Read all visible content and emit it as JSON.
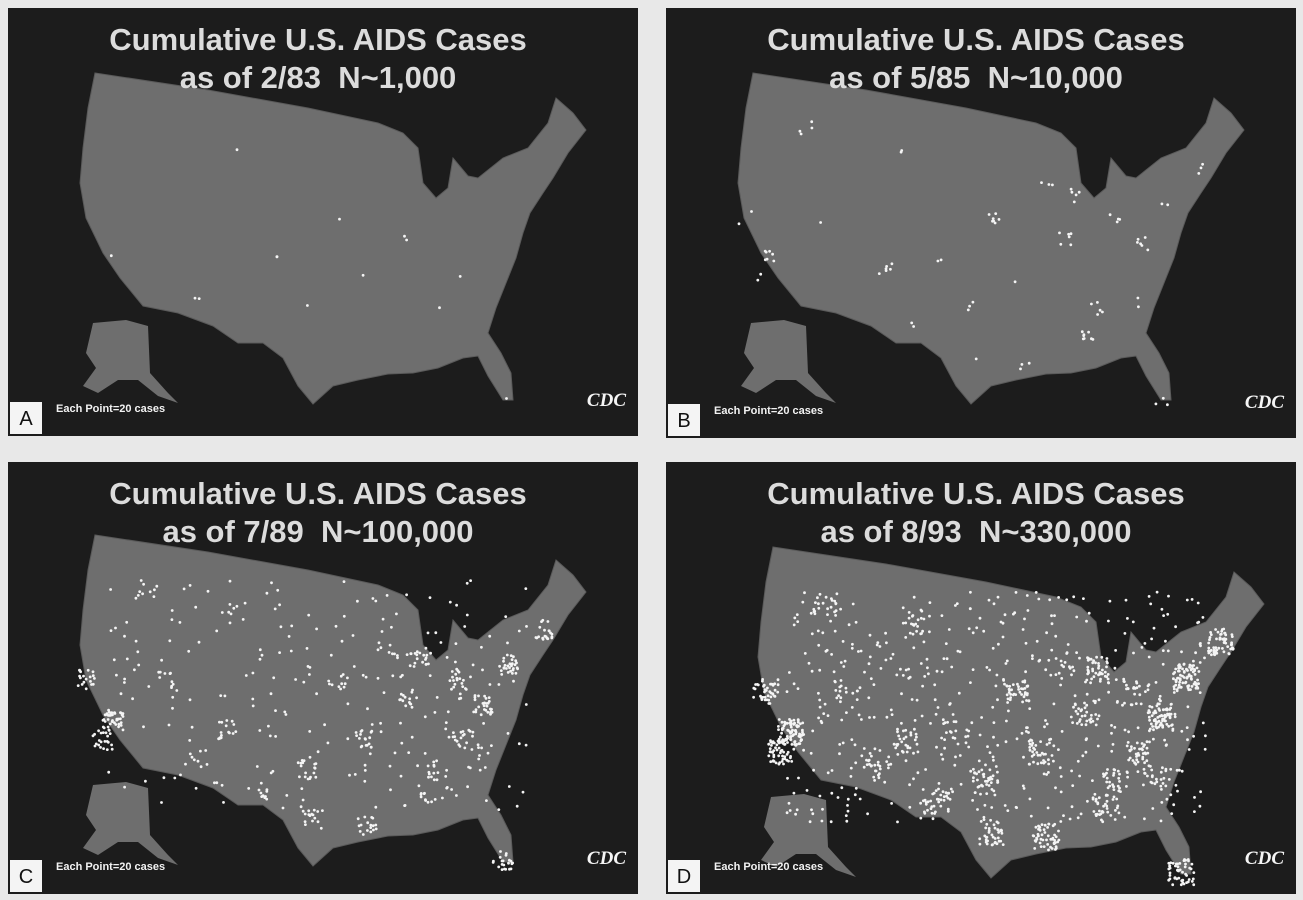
{
  "panels": [
    {
      "label": "A",
      "title_line1": "Cumulative U.S. AIDS Cases",
      "title_line2": "as of 2/83  N~1,000",
      "note": "Each Point=20 cases",
      "logo": "CDC"
    },
    {
      "label": "B",
      "title_line1": "Cumulative U.S. AIDS Cases",
      "title_line2": "as of 5/85  N~10,000",
      "note": "Each Point=20 cases",
      "logo": "CDC"
    },
    {
      "label": "C",
      "title_line1": "Cumulative U.S. AIDS Cases",
      "title_line2": "as of 7/89  N~100,000",
      "note": "Each Point=20 cases",
      "logo": "CDC"
    },
    {
      "label": "D",
      "title_line1": "Cumulative U.S. AIDS Cases",
      "title_line2": "as of 8/93  N~330,000",
      "note": "Each Point=20 cases",
      "logo": "CDC"
    }
  ]
}
